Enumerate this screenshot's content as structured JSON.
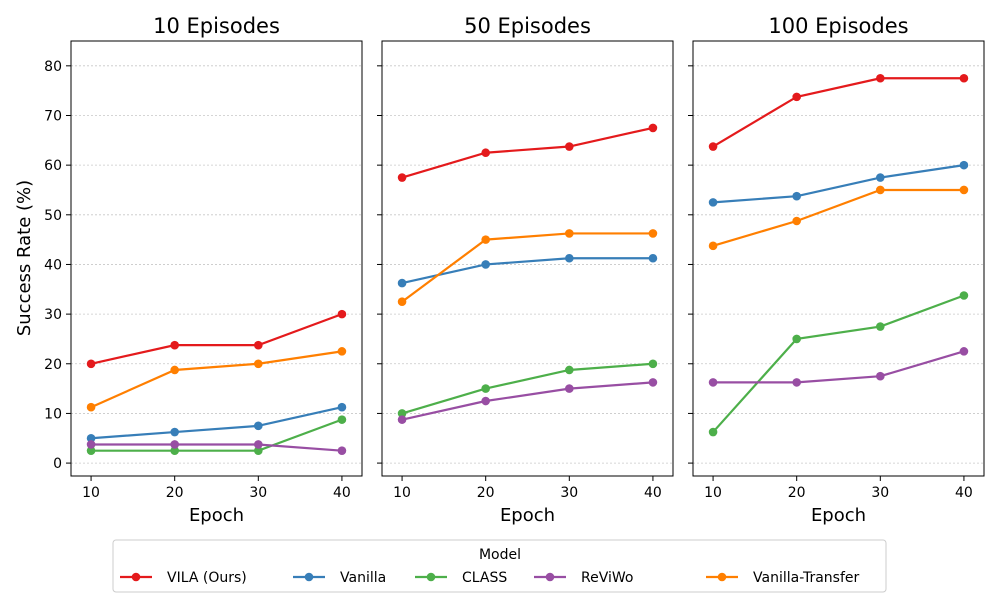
{
  "chart_data": {
    "type": "line",
    "ylabel": "Success Rate (%)",
    "ylim": [
      -2.6,
      85
    ],
    "yticks": [
      0,
      10,
      20,
      30,
      40,
      50,
      60,
      70,
      80
    ],
    "grid": "horizontal dotted",
    "legend": {
      "title": "Model",
      "placement": "bottom-center",
      "entries": [
        "VILA (Ours)",
        "Vanilla",
        "CLASS",
        "ReViWo",
        "Vanilla-Transfer"
      ]
    },
    "colors": {
      "VILA (Ours)": "#e41a1c",
      "Vanilla": "#377eb8",
      "CLASS": "#4daf4a",
      "ReViWo": "#984ea3",
      "Vanilla-Transfer": "#ff7f00"
    },
    "panels": [
      {
        "title": "10 Episodes",
        "xlabel": "Epoch",
        "x": [
          10,
          20,
          30,
          40
        ],
        "xlim": [
          7.6,
          42.4
        ],
        "series": [
          {
            "name": "VILA (Ours)",
            "values": [
              20,
              23.75,
              23.75,
              30
            ]
          },
          {
            "name": "Vanilla",
            "values": [
              5,
              6.25,
              7.5,
              11.25
            ]
          },
          {
            "name": "CLASS",
            "values": [
              2.5,
              2.5,
              2.5,
              8.75
            ]
          },
          {
            "name": "ReViWo",
            "values": [
              3.75,
              3.75,
              3.75,
              2.5
            ]
          },
          {
            "name": "Vanilla-Transfer",
            "values": [
              11.25,
              18.75,
              20,
              22.5
            ]
          }
        ]
      },
      {
        "title": "50 Episodes",
        "xlabel": "Epoch",
        "x": [
          10,
          20,
          30,
          40
        ],
        "xlim": [
          7.6,
          42.4
        ],
        "series": [
          {
            "name": "VILA (Ours)",
            "values": [
              57.5,
              62.5,
              63.75,
              67.5
            ]
          },
          {
            "name": "Vanilla",
            "values": [
              36.25,
              40,
              41.25,
              41.25
            ]
          },
          {
            "name": "CLASS",
            "values": [
              10,
              15,
              18.75,
              20
            ]
          },
          {
            "name": "ReViWo",
            "values": [
              8.75,
              12.5,
              15,
              16.25
            ]
          },
          {
            "name": "Vanilla-Transfer",
            "values": [
              32.5,
              45,
              46.25,
              46.25
            ]
          }
        ]
      },
      {
        "title": "100 Episodes",
        "xlabel": "Epoch",
        "x": [
          10,
          20,
          30,
          40
        ],
        "xlim": [
          7.6,
          42.4
        ],
        "series": [
          {
            "name": "VILA (Ours)",
            "values": [
              63.75,
              73.75,
              77.5,
              77.5
            ]
          },
          {
            "name": "Vanilla",
            "values": [
              52.5,
              53.75,
              57.5,
              60
            ]
          },
          {
            "name": "CLASS",
            "values": [
              6.25,
              25,
              27.5,
              33.75
            ]
          },
          {
            "name": "ReViWo",
            "values": [
              16.25,
              16.25,
              17.5,
              22.5
            ]
          },
          {
            "name": "Vanilla-Transfer",
            "values": [
              43.75,
              48.75,
              55,
              55
            ]
          }
        ]
      }
    ]
  }
}
